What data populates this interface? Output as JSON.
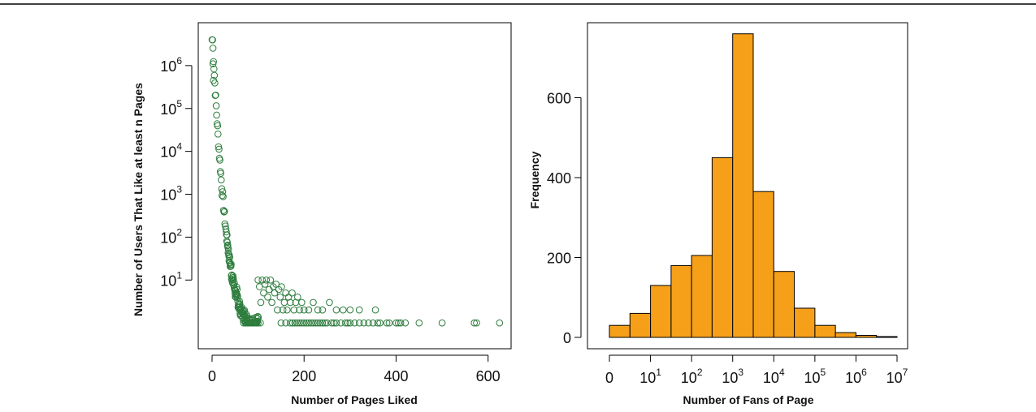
{
  "chart_data": [
    {
      "type": "scatter",
      "title": "",
      "xlabel": "Number of Pages Liked",
      "ylabel": "Number of Users That Like at least n Pages",
      "x_scale": "linear",
      "y_scale": "log",
      "xlim": [
        -30,
        650
      ],
      "ylim": [
        0.25,
        10000000
      ],
      "x_ticks": [
        0,
        200,
        400,
        600
      ],
      "x_tick_labels": [
        "0",
        "200",
        "400",
        "600"
      ],
      "y_ticks": [
        10,
        100,
        1000,
        10000,
        100000,
        1000000
      ],
      "y_tick_labels": [
        {
          "base": "10",
          "exp": "1"
        },
        {
          "base": "10",
          "exp": "2"
        },
        {
          "base": "10",
          "exp": "3"
        },
        {
          "base": "10",
          "exp": "4"
        },
        {
          "base": "10",
          "exp": "5"
        },
        {
          "base": "10",
          "exp": "6"
        }
      ],
      "marker": "open-circle",
      "color": "#2e7d3e",
      "grid": false,
      "decay_curve": {
        "n_start": 1,
        "n_end": 100,
        "users_start": 4000000,
        "shape": "steep-exponential",
        "noise": 0.12
      },
      "points": [
        [
          0,
          4000000
        ],
        [
          2,
          1100000
        ],
        [
          3,
          450000
        ],
        [
          100,
          10
        ],
        [
          103,
          7
        ],
        [
          106,
          3
        ],
        [
          109,
          10
        ],
        [
          112,
          5
        ],
        [
          115,
          8
        ],
        [
          118,
          10
        ],
        [
          121,
          4
        ],
        [
          124,
          6
        ],
        [
          127,
          10
        ],
        [
          130,
          3
        ],
        [
          133,
          7
        ],
        [
          136,
          5
        ],
        [
          139,
          8
        ],
        [
          142,
          2
        ],
        [
          145,
          6
        ],
        [
          148,
          4
        ],
        [
          151,
          7
        ],
        [
          154,
          2
        ],
        [
          157,
          3
        ],
        [
          160,
          5
        ],
        [
          163,
          2
        ],
        [
          166,
          4
        ],
        [
          170,
          3
        ],
        [
          174,
          5
        ],
        [
          178,
          2
        ],
        [
          182,
          3
        ],
        [
          186,
          4
        ],
        [
          190,
          2
        ],
        [
          195,
          3
        ],
        [
          200,
          2
        ],
        [
          210,
          2
        ],
        [
          220,
          3
        ],
        [
          230,
          2
        ],
        [
          240,
          2
        ],
        [
          255,
          3
        ],
        [
          270,
          2
        ],
        [
          285,
          2
        ],
        [
          300,
          2
        ],
        [
          320,
          2
        ],
        [
          355,
          2
        ],
        [
          105,
          1
        ],
        [
          150,
          1
        ],
        [
          160,
          1
        ],
        [
          170,
          1
        ],
        [
          175,
          1
        ],
        [
          180,
          1
        ],
        [
          185,
          1
        ],
        [
          190,
          1
        ],
        [
          195,
          1
        ],
        [
          200,
          1
        ],
        [
          205,
          1
        ],
        [
          210,
          1
        ],
        [
          215,
          1
        ],
        [
          220,
          1
        ],
        [
          225,
          1
        ],
        [
          230,
          1
        ],
        [
          235,
          1
        ],
        [
          240,
          1
        ],
        [
          245,
          1
        ],
        [
          250,
          1
        ],
        [
          260,
          1
        ],
        [
          265,
          1
        ],
        [
          270,
          1
        ],
        [
          280,
          1
        ],
        [
          290,
          1
        ],
        [
          295,
          1
        ],
        [
          300,
          1
        ],
        [
          310,
          1
        ],
        [
          320,
          1
        ],
        [
          330,
          1
        ],
        [
          340,
          1
        ],
        [
          350,
          1
        ],
        [
          360,
          1
        ],
        [
          365,
          1
        ],
        [
          380,
          1
        ],
        [
          385,
          1
        ],
        [
          400,
          1
        ],
        [
          405,
          1
        ],
        [
          410,
          1
        ],
        [
          420,
          1
        ],
        [
          450,
          1
        ],
        [
          500,
          1
        ],
        [
          570,
          1
        ],
        [
          575,
          1
        ],
        [
          625,
          1
        ]
      ]
    },
    {
      "type": "bar",
      "subtype": "histogram",
      "title": "",
      "xlabel": "Number of Fans of Page",
      "ylabel": "Frequency",
      "x_scale": "log",
      "bin_edges": [
        0,
        0.5,
        1,
        1.5,
        2,
        2.5,
        3,
        3.5,
        4,
        4.5,
        5,
        5.5,
        6,
        6.5,
        7
      ],
      "bin_edges_unit": "log10 of number of fans",
      "values": [
        30,
        60,
        130,
        180,
        205,
        450,
        760,
        365,
        165,
        73,
        30,
        12,
        5,
        2
      ],
      "ylim": [
        0,
        800
      ],
      "y_ticks": [
        0,
        200,
        400,
        600
      ],
      "y_tick_labels": [
        "0",
        "200",
        "400",
        "600"
      ],
      "x_tick_labels": [
        {
          "base": "0",
          "exp": ""
        },
        {
          "base": "10",
          "exp": "1"
        },
        {
          "base": "10",
          "exp": "2"
        },
        {
          "base": "10",
          "exp": "3"
        },
        {
          "base": "10",
          "exp": "4"
        },
        {
          "base": "10",
          "exp": "5"
        },
        {
          "base": "10",
          "exp": "6"
        },
        {
          "base": "10",
          "exp": "7"
        }
      ],
      "color": "#f6a01a",
      "edge_color": "#000000",
      "grid": false
    }
  ]
}
